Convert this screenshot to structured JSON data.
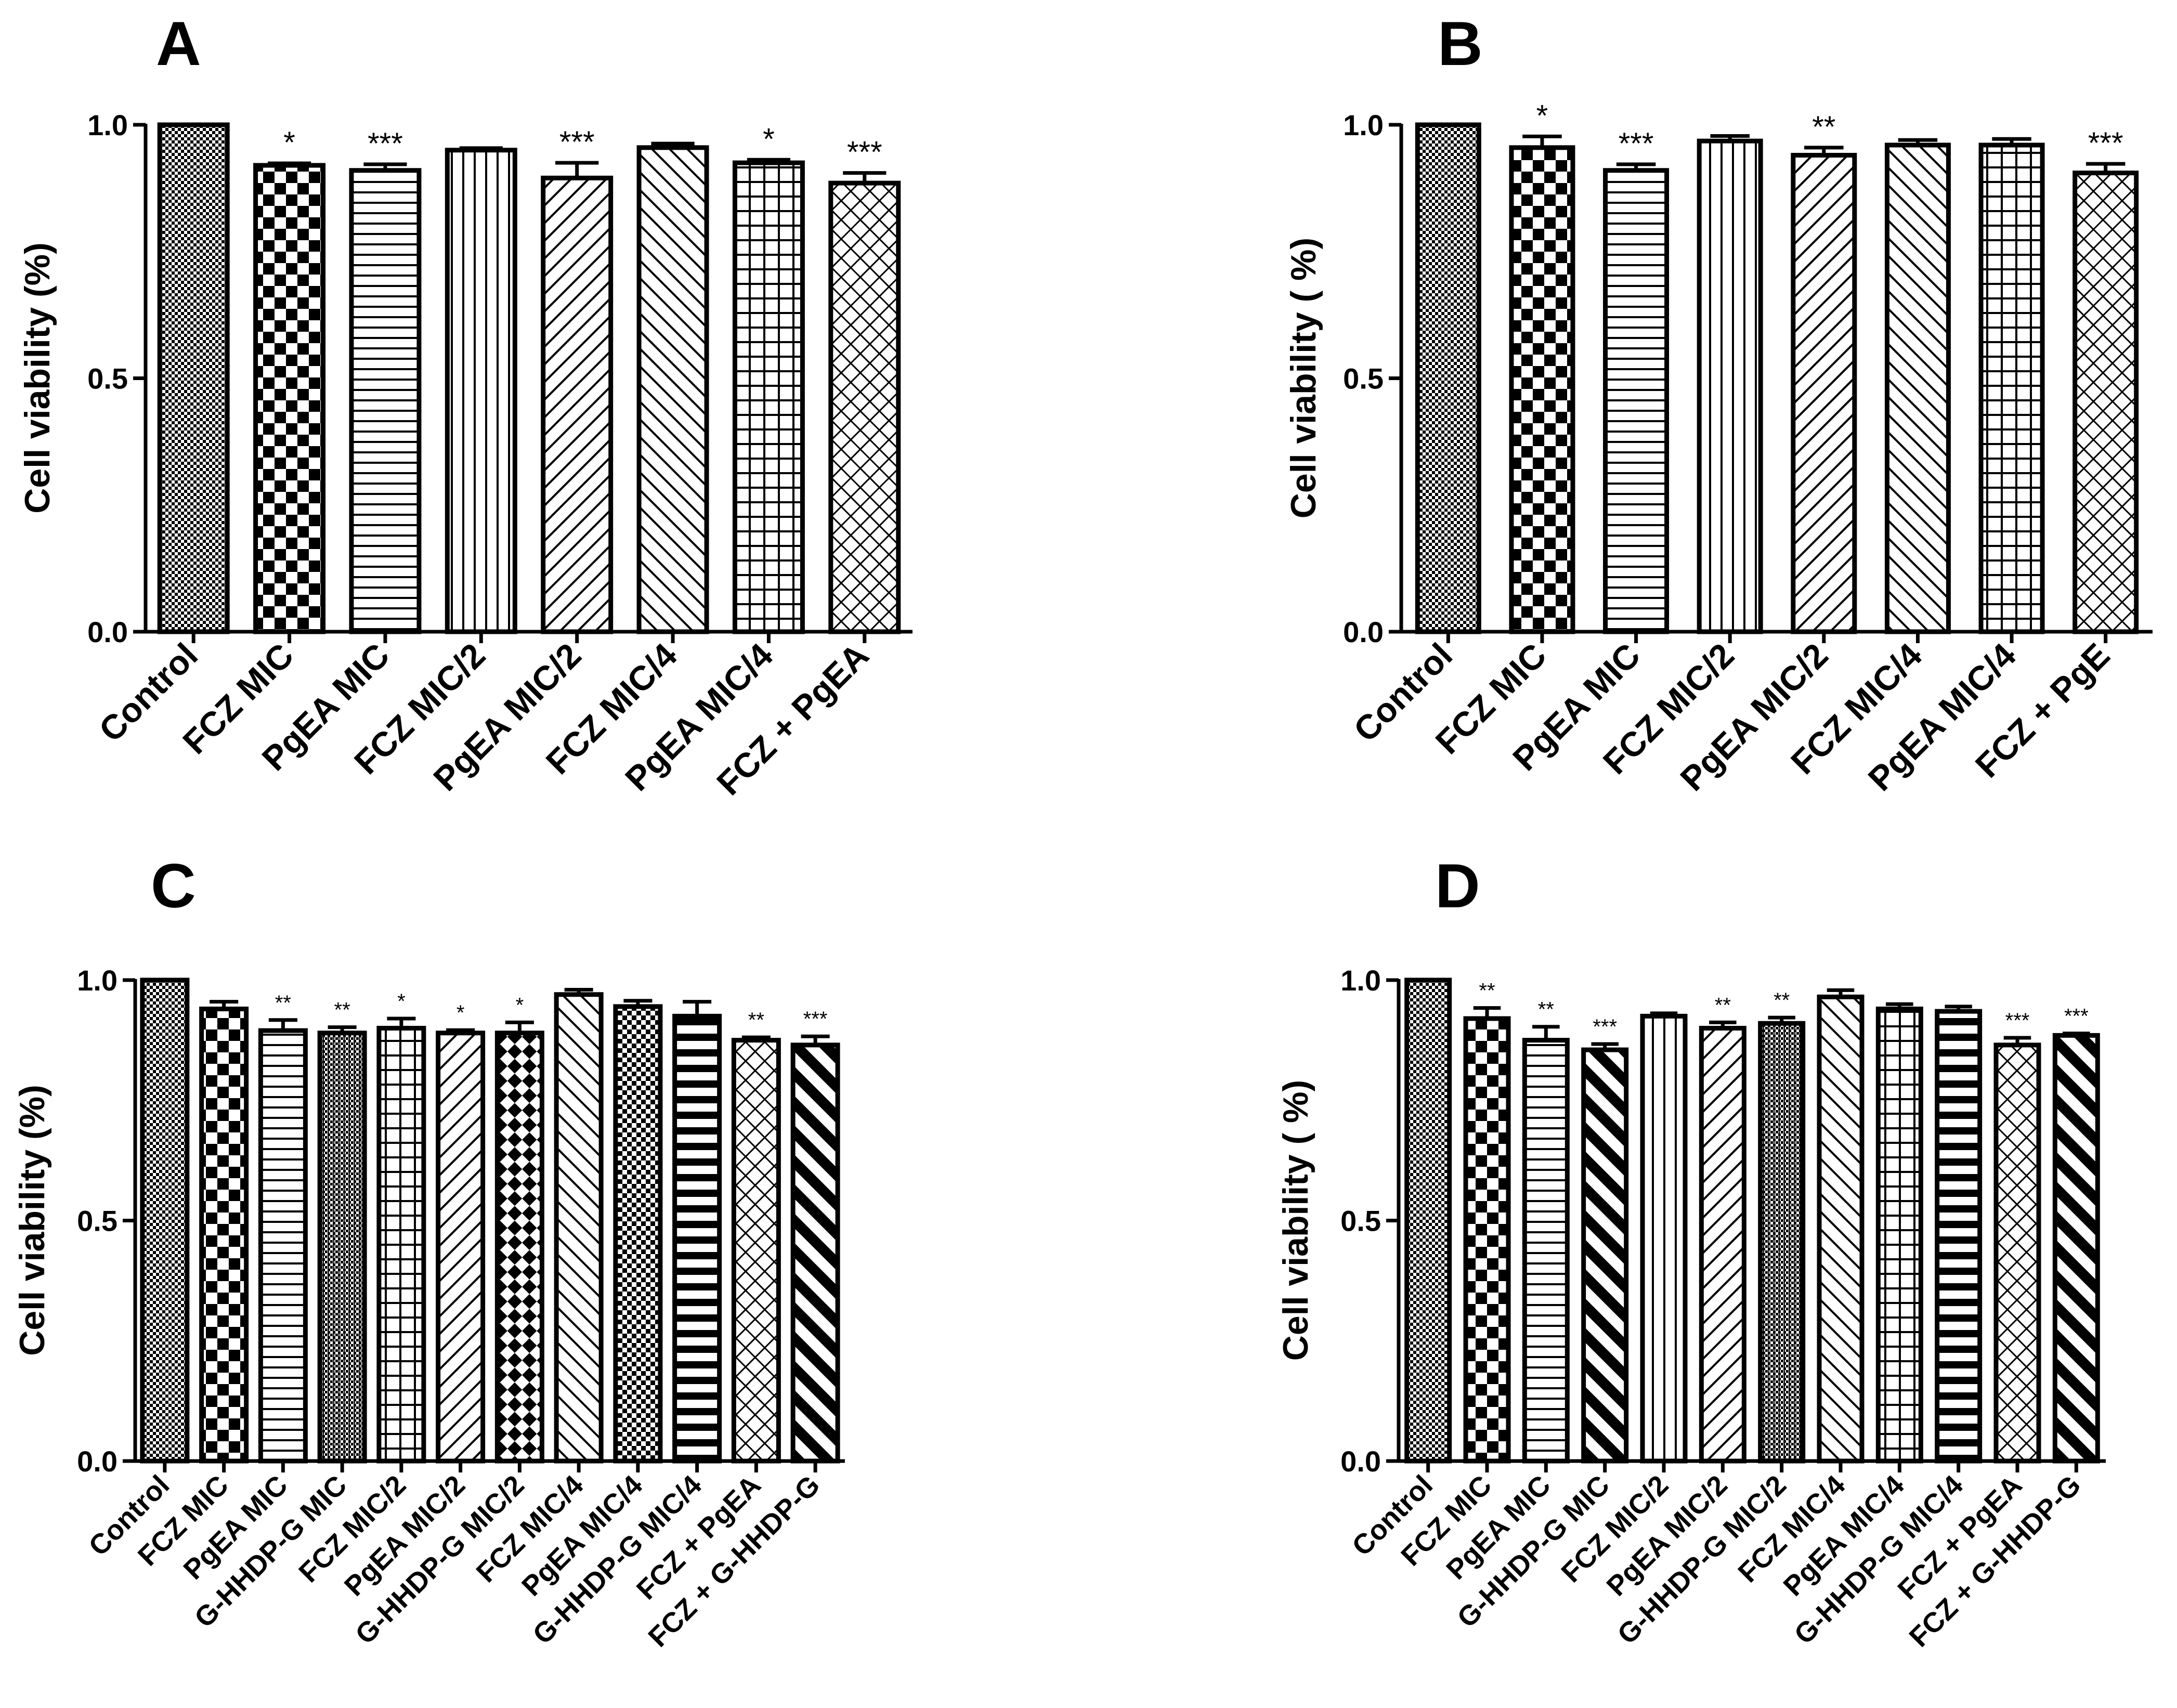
{
  "chart_data": [
    {
      "panel": "A",
      "type": "bar",
      "ylabel": "Cell viability (%)",
      "ylim": [
        0,
        1.0
      ],
      "yticks": [
        "0.0",
        "0.5",
        "1.0"
      ],
      "categories": [
        "Control",
        "FCZ MIC",
        "PgEA MIC",
        "FCZ MIC/2",
        "PgEA MIC/2",
        "FCZ MIC/4",
        "PgEA MIC/4",
        "FCZ + PgEA"
      ],
      "values": [
        1.0,
        0.92,
        0.91,
        0.95,
        0.895,
        0.955,
        0.925,
        0.885
      ],
      "errors": [
        0.0,
        0.004,
        0.012,
        0.004,
        0.03,
        0.008,
        0.006,
        0.02
      ],
      "significance": [
        "",
        "*",
        "***",
        "",
        "***",
        "",
        "*",
        "***"
      ],
      "patterns": [
        "fine",
        "checker",
        "hstripe",
        "vstripe",
        "diagR",
        "diagL",
        "grid",
        "diamond"
      ]
    },
    {
      "panel": "B",
      "type": "bar",
      "ylabel": "Cell viability ( %)",
      "ylim": [
        0,
        1.0
      ],
      "yticks": [
        "0.0",
        "0.5",
        "1.0"
      ],
      "categories": [
        "Control",
        "FCZ MIC",
        "PgEA MIC",
        "FCZ MIC/2",
        "PgEA MIC/2",
        "FCZ MIC/4",
        "PgEA MIC/4",
        "FCZ + PgE"
      ],
      "values": [
        1.0,
        0.955,
        0.91,
        0.968,
        0.94,
        0.96,
        0.96,
        0.905
      ],
      "errors": [
        0.0,
        0.022,
        0.012,
        0.01,
        0.015,
        0.01,
        0.012,
        0.018
      ],
      "significance": [
        "",
        "*",
        "***",
        "",
        "**",
        "",
        "",
        "***"
      ],
      "patterns": [
        "fine",
        "checker",
        "hstripe",
        "vstripe",
        "diagR",
        "diagL",
        "grid",
        "diamond"
      ]
    },
    {
      "panel": "C",
      "type": "bar",
      "ylabel": "Cell viability (%)",
      "ylim": [
        0,
        1.0
      ],
      "yticks": [
        "0.0",
        "0.5",
        "1.0"
      ],
      "categories": [
        "Control",
        "FCZ MIC",
        "PgEA MIC",
        "G-HHDP-G MIC",
        "FCZ MIC/2",
        "PgEA MIC/2",
        "G-HHDP-G MIC/2",
        "FCZ MIC/4",
        "PgEA MIC/4",
        "G-HHDP-G MIC/4",
        "FCZ + PgEA",
        "FCZ + G-HHDP-G"
      ],
      "values": [
        1.0,
        0.94,
        0.895,
        0.89,
        0.9,
        0.89,
        0.89,
        0.97,
        0.945,
        0.925,
        0.875,
        0.865
      ],
      "errors": [
        0.0,
        0.015,
        0.022,
        0.012,
        0.02,
        0.006,
        0.022,
        0.01,
        0.012,
        0.03,
        0.006,
        0.018
      ],
      "significance": [
        "",
        "",
        "**",
        "**",
        "*",
        "*",
        "*",
        "",
        "",
        "",
        "**",
        "***"
      ],
      "patterns": [
        "fine",
        "checker",
        "hstripe",
        "vdense",
        "grid",
        "diagR",
        "bigchecker",
        "diagL",
        "checker2",
        "thickh",
        "diamond",
        "thickdiag"
      ]
    },
    {
      "panel": "D",
      "type": "bar",
      "ylabel": "Cell viability ( %)",
      "ylim": [
        0,
        1.0
      ],
      "yticks": [
        "0.0",
        "0.5",
        "1.0"
      ],
      "categories": [
        "Control",
        "FCZ MIC",
        "PgEA MIC",
        "G-HHDP-G MIC",
        "FCZ MIC/2",
        "PgEA MIC/2",
        "G-HHDP-G MIC/2",
        "FCZ MIC/4",
        "PgEA MIC/4",
        "G-HHDP-G MIC/4",
        "FCZ + PgEA",
        "FCZ + G-HHDP-G"
      ],
      "values": [
        1.0,
        0.92,
        0.875,
        0.855,
        0.925,
        0.9,
        0.91,
        0.965,
        0.94,
        0.935,
        0.865,
        0.885
      ],
      "errors": [
        0.0,
        0.022,
        0.028,
        0.012,
        0.006,
        0.012,
        0.012,
        0.014,
        0.01,
        0.01,
        0.015,
        0.004
      ],
      "significance": [
        "",
        "**",
        "**",
        "***",
        "",
        "**",
        "**",
        "",
        "",
        "",
        "***",
        "***"
      ],
      "patterns": [
        "fine",
        "checker",
        "hstripe",
        "thickdiag",
        "vstripe",
        "diagR",
        "vdense",
        "diagL",
        "grid",
        "thickh",
        "diamond",
        "thickdiag"
      ]
    }
  ]
}
